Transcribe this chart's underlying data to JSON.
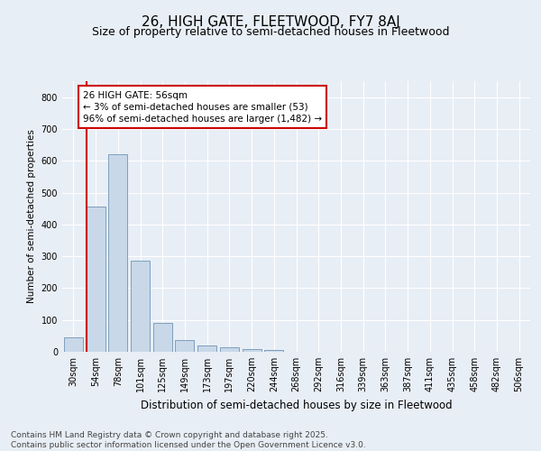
{
  "title": "26, HIGH GATE, FLEETWOOD, FY7 8AJ",
  "subtitle": "Size of property relative to semi-detached houses in Fleetwood",
  "xlabel": "Distribution of semi-detached houses by size in Fleetwood",
  "ylabel": "Number of semi-detached properties",
  "categories": [
    "30sqm",
    "54sqm",
    "78sqm",
    "101sqm",
    "125sqm",
    "149sqm",
    "173sqm",
    "197sqm",
    "220sqm",
    "244sqm",
    "268sqm",
    "292sqm",
    "316sqm",
    "339sqm",
    "363sqm",
    "387sqm",
    "411sqm",
    "435sqm",
    "458sqm",
    "482sqm",
    "506sqm"
  ],
  "values": [
    45,
    455,
    620,
    285,
    90,
    38,
    20,
    15,
    8,
    5,
    0,
    0,
    0,
    0,
    0,
    0,
    0,
    0,
    0,
    0,
    0
  ],
  "bar_color": "#c8d8e8",
  "bar_edge_color": "#7094b8",
  "vertical_line_color": "#cc0000",
  "annotation_text": "26 HIGH GATE: 56sqm\n← 3% of semi-detached houses are smaller (53)\n96% of semi-detached houses are larger (1,482) →",
  "ylim": [
    0,
    850
  ],
  "yticks": [
    0,
    100,
    200,
    300,
    400,
    500,
    600,
    700,
    800
  ],
  "axes_bg_color": "#e8eef5",
  "fig_bg_color": "#e8eef5",
  "footer_text": "Contains HM Land Registry data © Crown copyright and database right 2025.\nContains public sector information licensed under the Open Government Licence v3.0.",
  "title_fontsize": 11,
  "subtitle_fontsize": 9,
  "xlabel_fontsize": 8.5,
  "ylabel_fontsize": 7.5,
  "tick_fontsize": 7,
  "annotation_fontsize": 7.5,
  "footer_fontsize": 6.5
}
